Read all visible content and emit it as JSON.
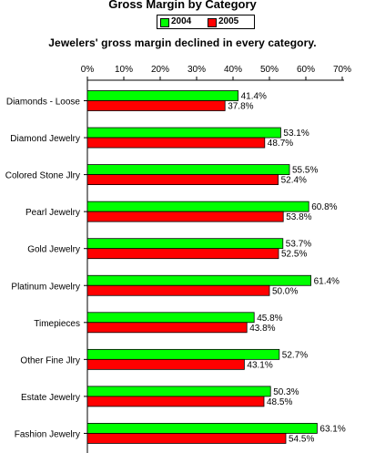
{
  "chart_data": {
    "type": "bar",
    "orientation": "horizontal",
    "title": "Gross Margin by Category",
    "subtitle": "Jewelers' gross margin declined in every category.",
    "categories": [
      "Diamonds - Loose",
      "Diamond Jewelry",
      "Colored Stone Jlry",
      "Pearl Jewelry",
      "Gold Jewelry",
      "Platinum Jewelry",
      "Timepieces",
      "Other Fine Jlry",
      "Estate Jewelry",
      "Fashion Jewelry"
    ],
    "series": [
      {
        "name": "2004",
        "color": "#00ff00",
        "values": [
          41.4,
          53.1,
          55.5,
          60.8,
          53.7,
          61.4,
          45.8,
          52.7,
          50.3,
          63.1
        ],
        "labels": [
          "41.4%",
          "53.1%",
          "55.5%",
          "60.8%",
          "53.7%",
          "61.4%",
          "45.8%",
          "52.7%",
          "50.3%",
          "63.1%"
        ]
      },
      {
        "name": "2005",
        "color": "#ff0000",
        "values": [
          37.8,
          48.7,
          52.4,
          53.8,
          52.5,
          50.0,
          43.8,
          43.1,
          48.5,
          54.5
        ],
        "labels": [
          "37.8%",
          "48.7%",
          "52.4%",
          "53.8%",
          "52.5%",
          "50.0%",
          "43.8%",
          "43.1%",
          "48.5%",
          "54.5%"
        ]
      }
    ],
    "xlim": [
      0,
      70
    ],
    "xticks": [
      "0%",
      "10%",
      "20%",
      "30%",
      "40%",
      "50%",
      "60%",
      "70%"
    ],
    "grid": false,
    "legend_position": "top"
  }
}
